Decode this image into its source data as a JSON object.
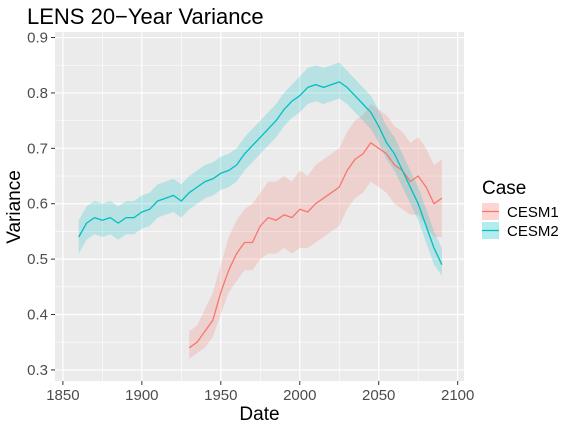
{
  "chart_data": {
    "type": "line",
    "title": "LENS 20−Year Variance",
    "xlabel": "Date",
    "ylabel": "Variance",
    "xlim": [
      1845,
      2104
    ],
    "ylim": [
      0.28,
      0.91
    ],
    "xticks": [
      1850,
      1900,
      1950,
      2000,
      2050,
      2100
    ],
    "yticks": [
      0.3,
      0.4,
      0.5,
      0.6,
      0.7,
      0.8,
      0.9
    ],
    "xtick_labels": [
      "1850",
      "1900",
      "1950",
      "2000",
      "2050",
      "2100"
    ],
    "ytick_labels": [
      "0.3",
      "0.4",
      "0.5",
      "0.6",
      "0.7",
      "0.8",
      "0.9"
    ],
    "grid": true,
    "legend_title": "Case",
    "legend_position": "right",
    "series": [
      {
        "name": "CESM1",
        "color": "#f8766d",
        "x": [
          1930,
          1935,
          1940,
          1945,
          1950,
          1955,
          1960,
          1965,
          1970,
          1975,
          1980,
          1985,
          1990,
          1995,
          2000,
          2005,
          2010,
          2015,
          2020,
          2025,
          2030,
          2035,
          2040,
          2045,
          2050,
          2055,
          2060,
          2065,
          2070,
          2075,
          2080,
          2085,
          2090
        ],
        "values": [
          0.34,
          0.35,
          0.37,
          0.39,
          0.44,
          0.48,
          0.51,
          0.53,
          0.53,
          0.56,
          0.575,
          0.57,
          0.58,
          0.575,
          0.59,
          0.585,
          0.6,
          0.61,
          0.62,
          0.63,
          0.66,
          0.68,
          0.69,
          0.71,
          0.7,
          0.69,
          0.67,
          0.66,
          0.64,
          0.65,
          0.63,
          0.6,
          0.61
        ],
        "lower": [
          0.32,
          0.33,
          0.34,
          0.36,
          0.4,
          0.44,
          0.46,
          0.48,
          0.48,
          0.5,
          0.51,
          0.51,
          0.52,
          0.51,
          0.52,
          0.52,
          0.53,
          0.54,
          0.55,
          0.56,
          0.59,
          0.61,
          0.62,
          0.64,
          0.63,
          0.62,
          0.6,
          0.59,
          0.58,
          0.58,
          0.56,
          0.54,
          0.54
        ],
        "upper": [
          0.37,
          0.38,
          0.41,
          0.44,
          0.49,
          0.54,
          0.57,
          0.59,
          0.6,
          0.62,
          0.64,
          0.64,
          0.65,
          0.64,
          0.66,
          0.65,
          0.67,
          0.68,
          0.69,
          0.7,
          0.73,
          0.75,
          0.76,
          0.78,
          0.77,
          0.76,
          0.74,
          0.73,
          0.71,
          0.72,
          0.7,
          0.67,
          0.68
        ]
      },
      {
        "name": "CESM2",
        "color": "#00bfc4",
        "x": [
          1860,
          1865,
          1870,
          1875,
          1880,
          1885,
          1890,
          1895,
          1900,
          1905,
          1910,
          1915,
          1920,
          1925,
          1930,
          1935,
          1940,
          1945,
          1950,
          1955,
          1960,
          1965,
          1970,
          1975,
          1980,
          1985,
          1990,
          1995,
          2000,
          2005,
          2010,
          2015,
          2020,
          2025,
          2030,
          2035,
          2040,
          2045,
          2050,
          2055,
          2060,
          2065,
          2070,
          2075,
          2080,
          2085,
          2090
        ],
        "values": [
          0.54,
          0.565,
          0.575,
          0.57,
          0.575,
          0.565,
          0.575,
          0.575,
          0.585,
          0.59,
          0.605,
          0.61,
          0.615,
          0.605,
          0.62,
          0.63,
          0.64,
          0.645,
          0.655,
          0.66,
          0.67,
          0.69,
          0.705,
          0.72,
          0.735,
          0.75,
          0.77,
          0.785,
          0.795,
          0.81,
          0.815,
          0.81,
          0.815,
          0.82,
          0.81,
          0.795,
          0.78,
          0.765,
          0.74,
          0.71,
          0.69,
          0.66,
          0.63,
          0.6,
          0.56,
          0.52,
          0.49
        ],
        "lower": [
          0.51,
          0.535,
          0.545,
          0.54,
          0.545,
          0.535,
          0.545,
          0.545,
          0.555,
          0.56,
          0.575,
          0.58,
          0.585,
          0.575,
          0.59,
          0.6,
          0.61,
          0.615,
          0.625,
          0.63,
          0.64,
          0.66,
          0.675,
          0.69,
          0.705,
          0.72,
          0.74,
          0.755,
          0.765,
          0.78,
          0.785,
          0.78,
          0.785,
          0.79,
          0.78,
          0.765,
          0.75,
          0.735,
          0.71,
          0.68,
          0.66,
          0.63,
          0.6,
          0.57,
          0.53,
          0.49,
          0.47
        ],
        "upper": [
          0.57,
          0.595,
          0.605,
          0.6,
          0.605,
          0.595,
          0.605,
          0.605,
          0.615,
          0.62,
          0.635,
          0.64,
          0.645,
          0.635,
          0.65,
          0.66,
          0.67,
          0.675,
          0.685,
          0.69,
          0.7,
          0.72,
          0.735,
          0.75,
          0.765,
          0.78,
          0.8,
          0.815,
          0.83,
          0.845,
          0.85,
          0.845,
          0.85,
          0.855,
          0.84,
          0.825,
          0.81,
          0.795,
          0.77,
          0.74,
          0.72,
          0.69,
          0.66,
          0.63,
          0.59,
          0.55,
          0.52
        ]
      }
    ]
  }
}
